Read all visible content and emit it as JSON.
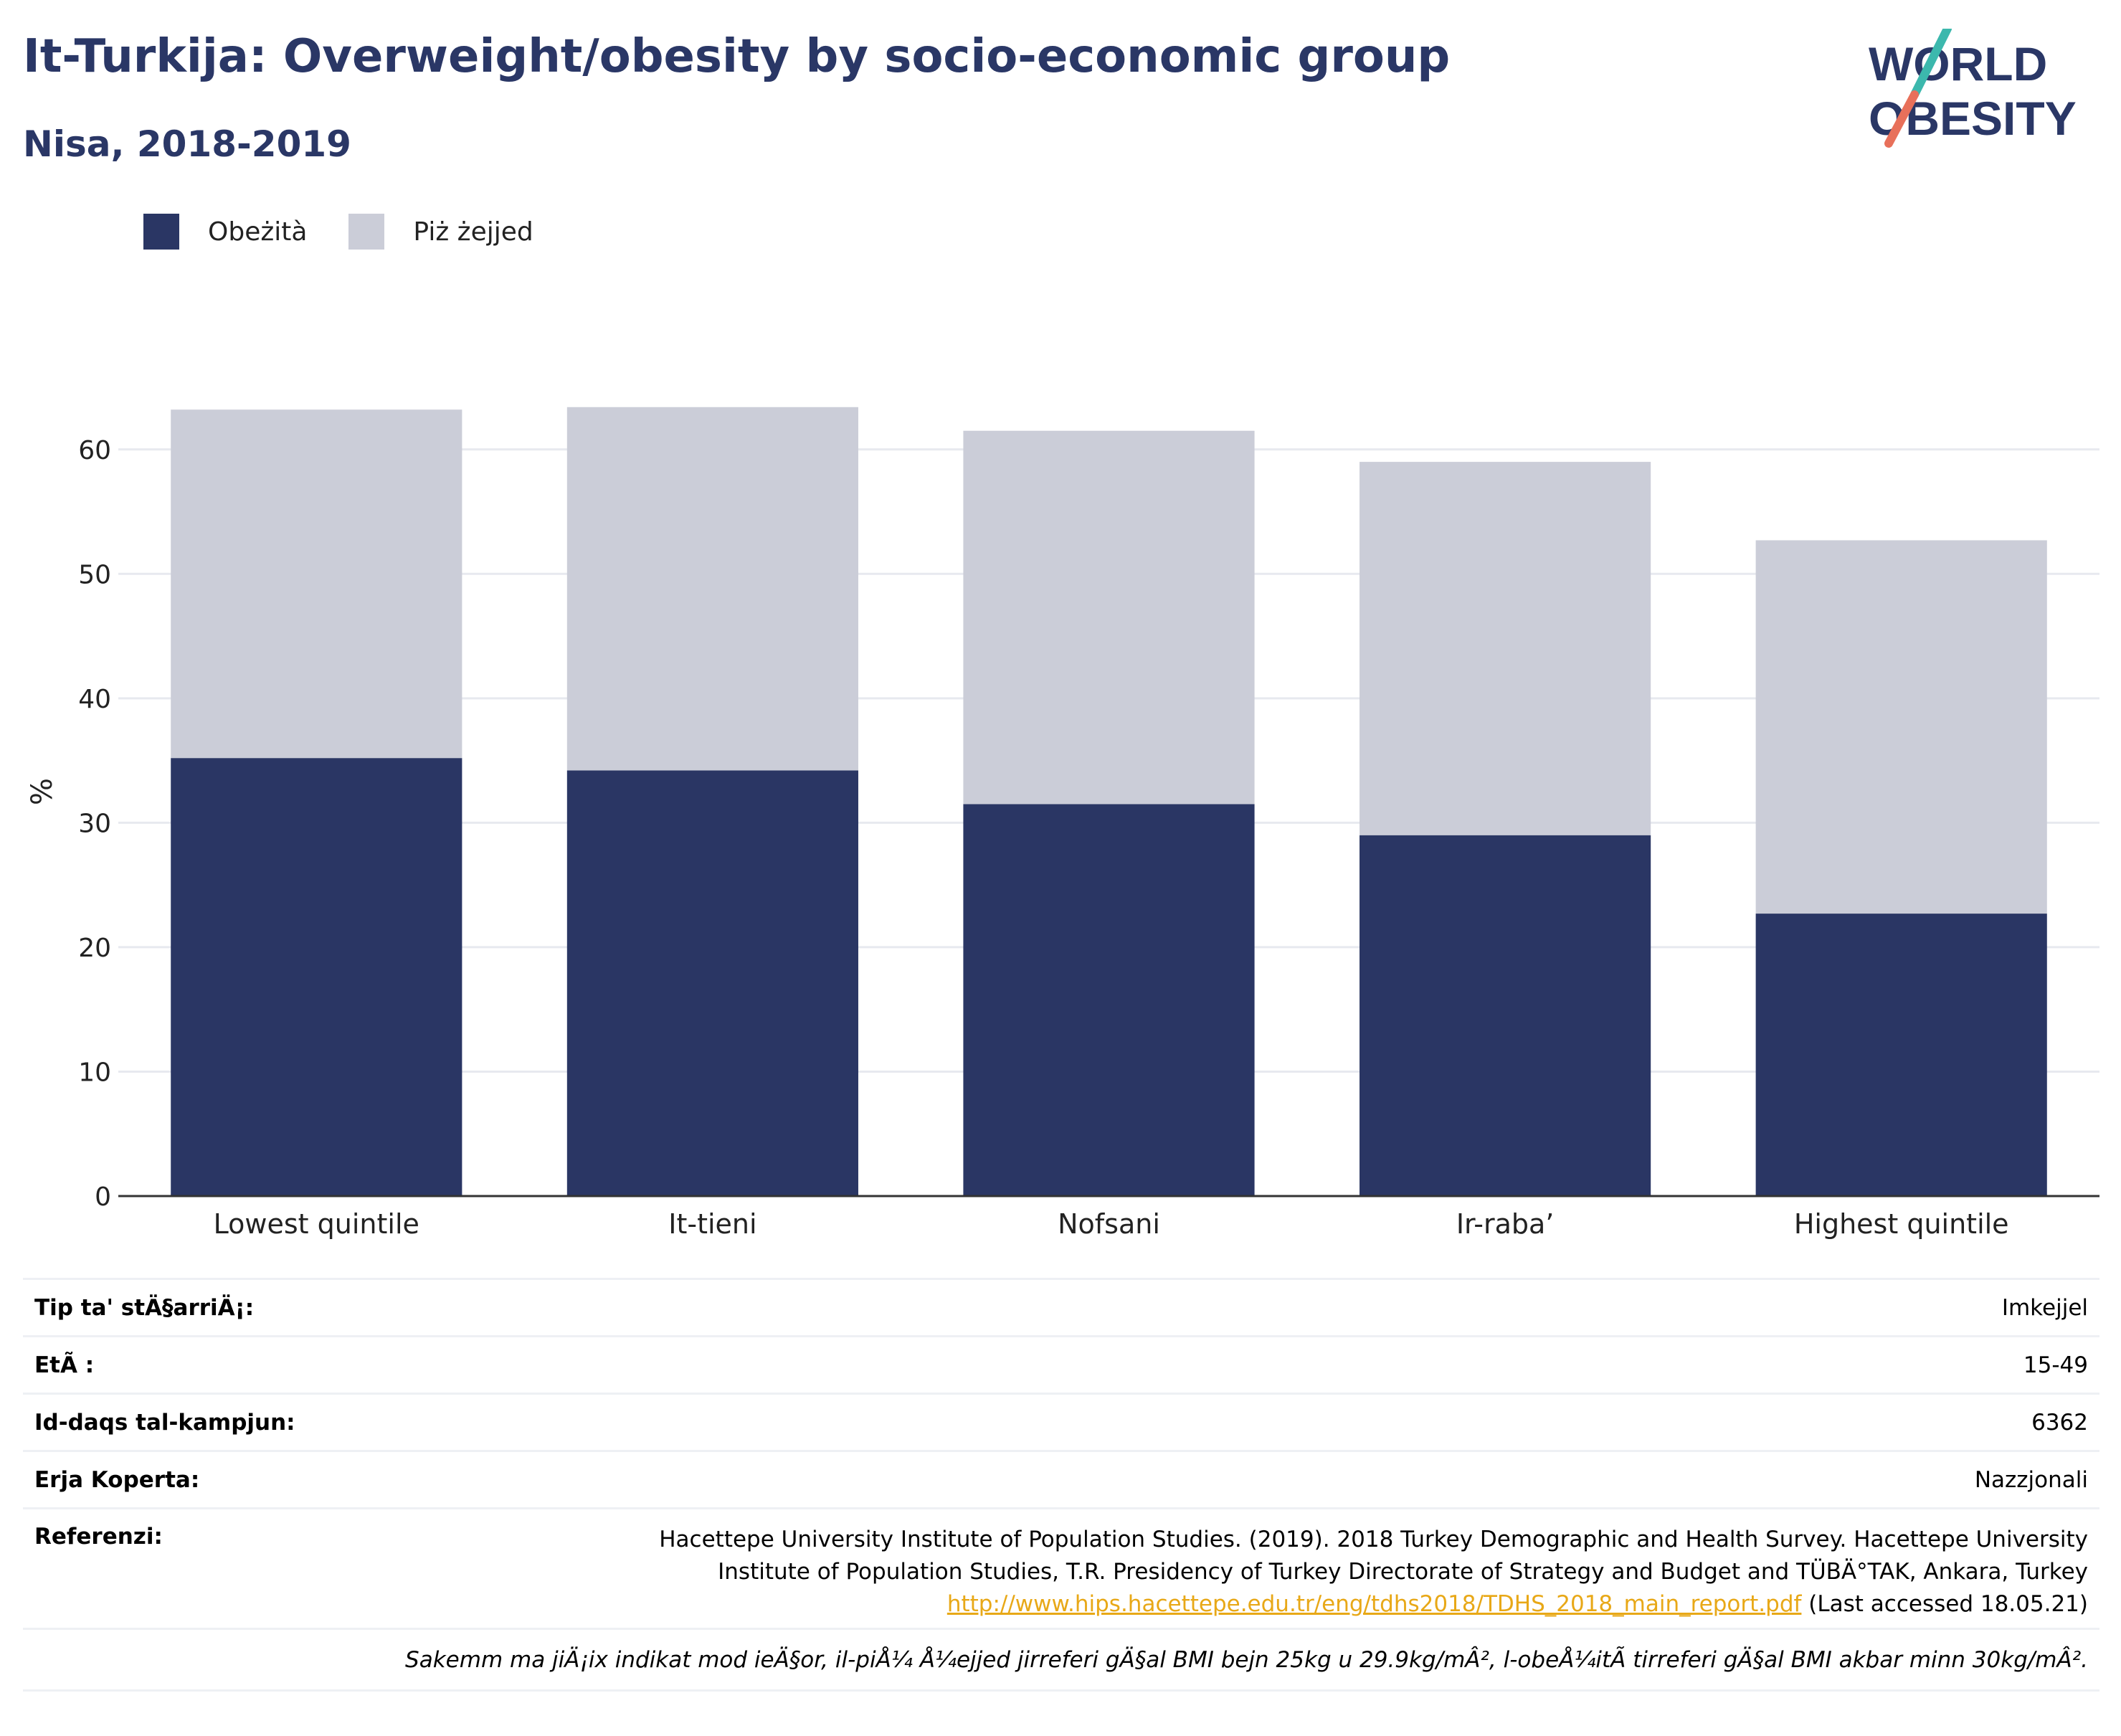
{
  "title": "It-Turkija: Overweight/obesity by socio-economic group",
  "subtitle": "Nisa, 2018-2019",
  "logo": {
    "line1": "WORLD",
    "line2": "OBESITY"
  },
  "colors": {
    "obesity": "#2a3664",
    "overweight": "#cbcdd8",
    "title": "#2a3766",
    "grid": "#e7e9ef",
    "link": "#e8a817"
  },
  "legend": [
    {
      "label": "Obeżità",
      "color": "#2a3664"
    },
    {
      "label": "Piż żejjed",
      "color": "#cbcdd8"
    }
  ],
  "chart_data": {
    "type": "bar",
    "stacked": true,
    "categories": [
      "Lowest quintile",
      "It-tieni",
      "Nofsani",
      "Ir-raba’",
      "Highest quintile"
    ],
    "series": [
      {
        "name": "Obeżità",
        "values": [
          35.2,
          34.2,
          31.5,
          29.0,
          22.7
        ]
      },
      {
        "name": "Piż żejjed",
        "values": [
          28.0,
          29.2,
          30.0,
          30.0,
          30.0
        ]
      }
    ],
    "ylabel": "%",
    "ylim": [
      0,
      65
    ],
    "yticks": [
      0,
      10,
      20,
      30,
      40,
      50,
      60
    ],
    "grid": true,
    "legend_position": "top-left"
  },
  "info": [
    {
      "key": "Tip ta' stÄ§arriÄ¡:",
      "value": "Imkejjel"
    },
    {
      "key": "EtÃ :",
      "value": "15-49"
    },
    {
      "key": "Id-daqs tal-kampjun:",
      "value": "6362"
    },
    {
      "key": "Erja Koperta:",
      "value": "Nazzjonali"
    }
  ],
  "reference": {
    "key": "Referenzi:",
    "line1": "Hacettepe University Institute of Population Studies. (2019). 2018 Turkey Demographic and Health Survey. Hacettepe University",
    "line2": "Institute of Population Studies, T.R. Presidency of Turkey Directorate of Strategy and Budget and TÜBÄ°TAK, Ankara, Turkey",
    "link": "http://www.hips.hacettepe.edu.tr/eng/tdhs2018/TDHS_2018_main_report.pdf",
    "accessed": " (Last accessed 18.05.21)"
  },
  "note": "Sakemm ma jiÄ¡ix indikat mod ieÄ§or, il-piÅ¼ Å¼ejjed jirreferi gÄ§al BMI bejn 25kg u 29.9kg/mÂ², l-obeÅ¼itÃ  tirreferi gÄ§al BMI akbar minn 30kg/mÂ²."
}
